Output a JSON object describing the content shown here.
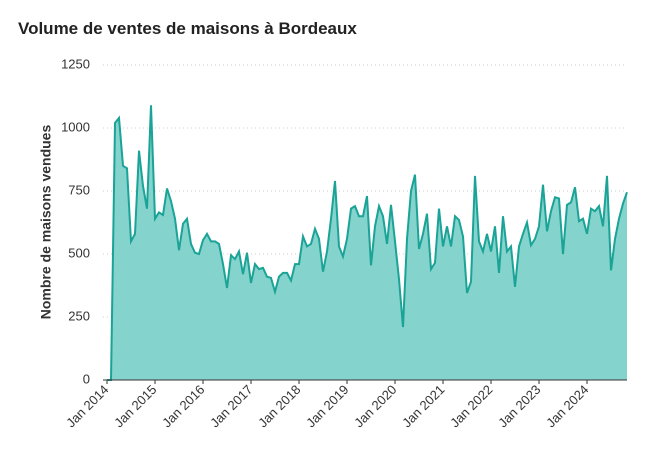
{
  "chart_data": {
    "type": "area",
    "title": "Volume de ventes de maisons à Bordeaux",
    "ylabel": "Nombre de maisons vendues",
    "x": [
      "2014-01",
      "2014-02",
      "2014-03",
      "2014-04",
      "2014-05",
      "2014-06",
      "2014-07",
      "2014-08",
      "2014-09",
      "2014-10",
      "2014-11",
      "2014-12",
      "2015-01",
      "2015-02",
      "2015-03",
      "2015-04",
      "2015-05",
      "2015-06",
      "2015-07",
      "2015-08",
      "2015-09",
      "2015-10",
      "2015-11",
      "2015-12",
      "2016-01",
      "2016-02",
      "2016-03",
      "2016-04",
      "2016-05",
      "2016-06",
      "2016-07",
      "2016-08",
      "2016-09",
      "2016-10",
      "2016-11",
      "2016-12",
      "2017-01",
      "2017-02",
      "2017-03",
      "2017-04",
      "2017-05",
      "2017-06",
      "2017-07",
      "2017-08",
      "2017-09",
      "2017-10",
      "2017-11",
      "2017-12",
      "2018-01",
      "2018-02",
      "2018-03",
      "2018-04",
      "2018-05",
      "2018-06",
      "2018-07",
      "2018-08",
      "2018-09",
      "2018-10",
      "2018-11",
      "2018-12",
      "2019-01",
      "2019-02",
      "2019-03",
      "2019-04",
      "2019-05",
      "2019-06",
      "2019-07",
      "2019-08",
      "2019-09",
      "2019-10",
      "2019-11",
      "2019-12",
      "2020-01",
      "2020-02",
      "2020-03",
      "2020-04",
      "2020-05",
      "2020-06",
      "2020-07",
      "2020-08",
      "2020-09",
      "2020-10",
      "2020-11",
      "2020-12",
      "2021-01",
      "2021-02",
      "2021-03",
      "2021-04",
      "2021-05",
      "2021-06",
      "2021-07",
      "2021-08",
      "2021-09",
      "2021-10",
      "2021-11",
      "2021-12",
      "2022-01",
      "2022-02",
      "2022-03",
      "2022-04",
      "2022-05",
      "2022-06",
      "2022-07",
      "2022-08",
      "2022-09",
      "2022-10",
      "2022-11",
      "2022-12",
      "2023-01",
      "2023-02",
      "2023-03",
      "2023-04",
      "2023-05",
      "2023-06",
      "2023-07",
      "2023-08",
      "2023-09",
      "2023-10",
      "2023-11",
      "2023-12",
      "2024-01",
      "2024-02",
      "2024-03",
      "2024-04",
      "2024-05",
      "2024-06",
      "2024-07",
      "2024-08",
      "2024-09",
      "2024-10",
      "2024-11"
    ],
    "series": [
      {
        "color": "#1aa396",
        "fill": "#84d3cc",
        "values": [
          0,
          0,
          1020,
          1040,
          850,
          840,
          550,
          580,
          910,
          770,
          680,
          1090,
          640,
          665,
          655,
          760,
          710,
          640,
          515,
          620,
          640,
          540,
          505,
          500,
          555,
          580,
          550,
          550,
          540,
          460,
          365,
          495,
          480,
          510,
          420,
          505,
          385,
          460,
          440,
          445,
          410,
          405,
          350,
          410,
          425,
          425,
          395,
          460,
          460,
          570,
          530,
          540,
          600,
          560,
          430,
          510,
          640,
          790,
          530,
          490,
          560,
          680,
          690,
          650,
          650,
          730,
          455,
          610,
          690,
          650,
          540,
          695,
          550,
          400,
          210,
          560,
          750,
          815,
          520,
          580,
          660,
          440,
          465,
          680,
          530,
          610,
          530,
          650,
          635,
          570,
          345,
          390,
          810,
          550,
          510,
          580,
          510,
          610,
          425,
          650,
          510,
          530,
          370,
          530,
          580,
          625,
          535,
          560,
          610,
          775,
          590,
          670,
          725,
          720,
          500,
          695,
          705,
          765,
          630,
          640,
          580,
          680,
          670,
          690,
          610,
          810,
          435,
          560,
          640,
          700,
          745
        ]
      }
    ],
    "xticks": [
      {
        "value": "2014-01",
        "label": "Jan 2014"
      },
      {
        "value": "2015-01",
        "label": "Jan 2015"
      },
      {
        "value": "2016-01",
        "label": "Jan 2016"
      },
      {
        "value": "2017-01",
        "label": "Jan 2017"
      },
      {
        "value": "2018-01",
        "label": "Jan 2018"
      },
      {
        "value": "2019-01",
        "label": "Jan 2019"
      },
      {
        "value": "2020-01",
        "label": "Jan 2020"
      },
      {
        "value": "2021-01",
        "label": "Jan 2021"
      },
      {
        "value": "2022-01",
        "label": "Jan 2022"
      },
      {
        "value": "2023-01",
        "label": "Jan 2023"
      },
      {
        "value": "2024-01",
        "label": "Jan 2024"
      }
    ],
    "ylim": [
      0,
      1250
    ],
    "yticks": [
      0,
      250,
      500,
      750,
      1000,
      1250
    ],
    "grid": true
  }
}
